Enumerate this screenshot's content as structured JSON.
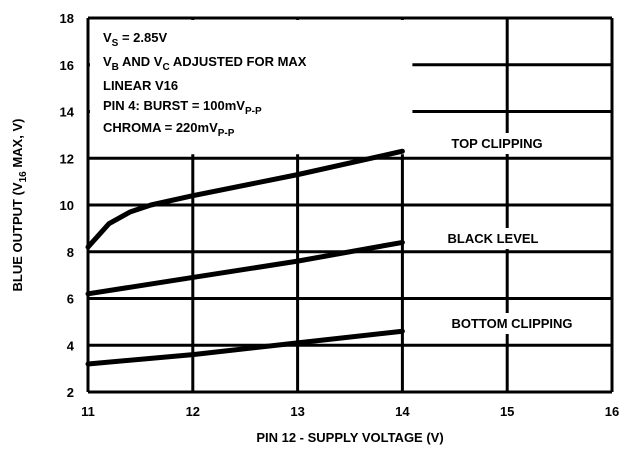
{
  "chart_data": {
    "type": "line",
    "x_label": "PIN 12 - SUPPLY VOLTAGE (V)",
    "y_label": [
      "BLUE OUTPUT (V",
      "16",
      " MAX, V)"
    ],
    "annotations": [
      [
        "V",
        "S",
        " = 2.85V"
      ],
      [
        "V",
        "B",
        " AND V",
        "C",
        " ADJUSTED FOR MAX"
      ],
      [
        "LINEAR V16"
      ],
      [
        "PIN 4: BURST = 100mV",
        "P-P"
      ],
      [
        "CHROMA = 220mV",
        "P-P"
      ]
    ],
    "labels": [
      "TOP CLIPPING",
      "BLACK LEVEL",
      "BOTTOM CLIPPING"
    ],
    "series": [
      {
        "x": [
          11,
          11.2,
          11.4,
          11.6,
          12,
          13,
          14
        ],
        "values": [
          8.2,
          9.2,
          9.7,
          10.0,
          10.4,
          11.3,
          12.3
        ],
        "color": "#000000"
      },
      {
        "x": [
          11,
          12,
          13,
          14
        ],
        "values": [
          6.2,
          6.9,
          7.6,
          8.4
        ],
        "color": "#000000"
      },
      {
        "x": [
          11,
          12,
          13,
          14
        ],
        "values": [
          3.2,
          3.6,
          4.1,
          4.6
        ],
        "color": "#000000"
      }
    ],
    "xlim": [
      11,
      16
    ],
    "xticks": [
      11,
      12,
      13,
      14,
      15,
      16
    ],
    "ylim": [
      2,
      18
    ],
    "yticks": [
      2,
      4,
      6,
      8,
      10,
      12,
      14,
      16,
      18
    ],
    "grid": true
  }
}
